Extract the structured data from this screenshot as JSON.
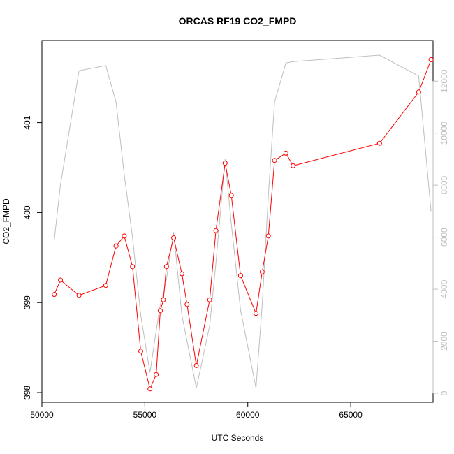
{
  "chart_data": {
    "type": "line",
    "title": "ORCAS RF19 CO2_FMPD",
    "xlabel": "UTC Seconds",
    "ylabel": "CO2_FMPD",
    "xlim": [
      50000,
      69000
    ],
    "ylim": [
      398,
      401.75
    ],
    "y2lim": [
      0,
      13000
    ],
    "x_ticks": [
      50000,
      55000,
      60000,
      65000
    ],
    "y_ticks": [
      398,
      399,
      400,
      401
    ],
    "y2_ticks": [
      0,
      2000,
      4000,
      6000,
      8000,
      10000,
      12000
    ],
    "grid": false,
    "colors": {
      "co2": "#ff0000",
      "altitude": "#bebebe"
    },
    "series": [
      {
        "axis": "left",
        "style": "line-with-open-circles",
        "points": [
          [
            50600,
            399.09
          ],
          [
            50900,
            399.25
          ],
          [
            51800,
            399.08
          ],
          [
            53100,
            399.19
          ],
          [
            53600,
            399.63
          ],
          [
            54000,
            399.74
          ],
          [
            54400,
            399.4
          ],
          [
            54800,
            398.46
          ],
          [
            55250,
            398.04
          ],
          [
            55550,
            398.2
          ],
          [
            55750,
            398.91
          ],
          [
            55900,
            399.03
          ],
          [
            56050,
            399.4
          ],
          [
            56400,
            399.72
          ],
          [
            56800,
            399.32
          ],
          [
            57050,
            398.98
          ],
          [
            57500,
            398.3
          ],
          [
            58150,
            399.03
          ],
          [
            58450,
            399.8
          ],
          [
            58900,
            400.55
          ],
          [
            59200,
            400.19
          ],
          [
            59650,
            399.3
          ],
          [
            60400,
            398.88
          ],
          [
            60700,
            399.34
          ],
          [
            61000,
            399.74
          ],
          [
            61300,
            400.58
          ],
          [
            61850,
            400.66
          ],
          [
            62200,
            400.52
          ],
          [
            66400,
            400.77
          ],
          [
            68300,
            401.34
          ],
          [
            68900,
            401.7
          ]
        ]
      },
      {
        "axis": "right",
        "style": "line",
        "points": [
          [
            50600,
            5900
          ],
          [
            50900,
            8000
          ],
          [
            51800,
            12400
          ],
          [
            53100,
            12600
          ],
          [
            53600,
            11200
          ],
          [
            54000,
            8400
          ],
          [
            54400,
            6000
          ],
          [
            54800,
            3000
          ],
          [
            55250,
            800
          ],
          [
            55550,
            2400
          ],
          [
            55750,
            3400
          ],
          [
            55900,
            3800
          ],
          [
            56050,
            4400
          ],
          [
            56400,
            6200
          ],
          [
            56800,
            3000
          ],
          [
            57050,
            2000
          ],
          [
            57500,
            200
          ],
          [
            58150,
            2600
          ],
          [
            58450,
            5000
          ],
          [
            58900,
            9000
          ],
          [
            59200,
            6500
          ],
          [
            59650,
            3200
          ],
          [
            60400,
            200
          ],
          [
            60700,
            3400
          ],
          [
            61000,
            7600
          ],
          [
            61300,
            11200
          ],
          [
            61850,
            12700
          ],
          [
            62200,
            12750
          ],
          [
            66400,
            13000
          ],
          [
            68300,
            12200
          ],
          [
            68900,
            7000
          ]
        ]
      }
    ]
  }
}
